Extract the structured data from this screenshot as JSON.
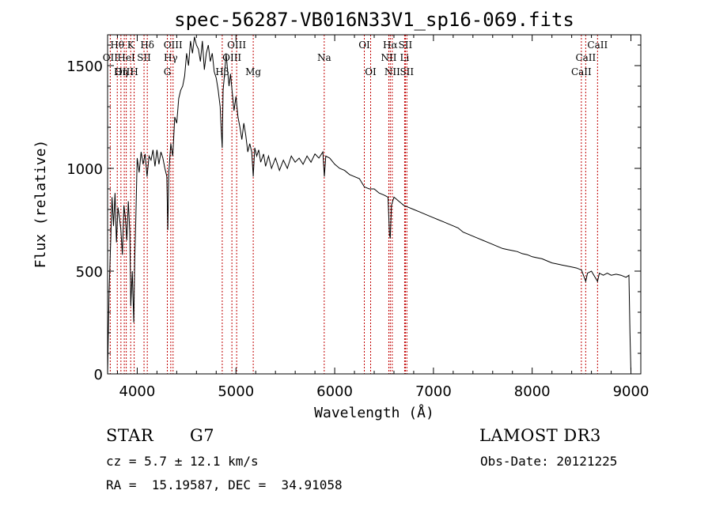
{
  "chart_data": {
    "type": "line",
    "title": "spec-56287-VB016N33V1_sp16-069.fits",
    "xlabel": "Wavelength (Å)",
    "ylabel": "Flux (relative)",
    "xlim": [
      3700,
      9100
    ],
    "ylim": [
      0,
      1650
    ],
    "xticks": [
      4000,
      5000,
      6000,
      7000,
      8000,
      9000
    ],
    "yticks": [
      0,
      500,
      1000,
      1500
    ],
    "spectrum": [
      [
        3700,
        0
      ],
      [
        3715,
        400
      ],
      [
        3730,
        620
      ],
      [
        3745,
        860
      ],
      [
        3760,
        720
      ],
      [
        3775,
        880
      ],
      [
        3790,
        640
      ],
      [
        3805,
        810
      ],
      [
        3820,
        760
      ],
      [
        3835,
        700
      ],
      [
        3850,
        580
      ],
      [
        3865,
        820
      ],
      [
        3880,
        760
      ],
      [
        3895,
        650
      ],
      [
        3910,
        840
      ],
      [
        3925,
        690
      ],
      [
        3935,
        330
      ],
      [
        3950,
        500
      ],
      [
        3965,
        250
      ],
      [
        3975,
        560
      ],
      [
        3985,
        740
      ],
      [
        4000,
        1050
      ],
      [
        4020,
        980
      ],
      [
        4040,
        1080
      ],
      [
        4060,
        1020
      ],
      [
        4080,
        1070
      ],
      [
        4100,
        960
      ],
      [
        4120,
        1060
      ],
      [
        4140,
        1040
      ],
      [
        4160,
        1090
      ],
      [
        4180,
        1010
      ],
      [
        4200,
        1090
      ],
      [
        4220,
        1020
      ],
      [
        4240,
        1080
      ],
      [
        4260,
        1050
      ],
      [
        4280,
        1000
      ],
      [
        4300,
        960
      ],
      [
        4310,
        700
      ],
      [
        4320,
        980
      ],
      [
        4340,
        1120
      ],
      [
        4360,
        1060
      ],
      [
        4380,
        1250
      ],
      [
        4400,
        1220
      ],
      [
        4420,
        1340
      ],
      [
        4440,
        1380
      ],
      [
        4460,
        1400
      ],
      [
        4480,
        1450
      ],
      [
        4500,
        1560
      ],
      [
        4520,
        1500
      ],
      [
        4540,
        1620
      ],
      [
        4560,
        1560
      ],
      [
        4580,
        1640
      ],
      [
        4600,
        1600
      ],
      [
        4620,
        1580
      ],
      [
        4640,
        1520
      ],
      [
        4660,
        1620
      ],
      [
        4680,
        1480
      ],
      [
        4700,
        1560
      ],
      [
        4720,
        1600
      ],
      [
        4740,
        1520
      ],
      [
        4760,
        1560
      ],
      [
        4780,
        1470
      ],
      [
        4800,
        1440
      ],
      [
        4820,
        1380
      ],
      [
        4840,
        1300
      ],
      [
        4850,
        1200
      ],
      [
        4861,
        1100
      ],
      [
        4870,
        1380
      ],
      [
        4885,
        1460
      ],
      [
        4900,
        1560
      ],
      [
        4915,
        1480
      ],
      [
        4930,
        1400
      ],
      [
        4945,
        1460
      ],
      [
        4960,
        1380
      ],
      [
        4980,
        1280
      ],
      [
        5000,
        1350
      ],
      [
        5020,
        1250
      ],
      [
        5040,
        1200
      ],
      [
        5060,
        1140
      ],
      [
        5080,
        1220
      ],
      [
        5100,
        1160
      ],
      [
        5120,
        1080
      ],
      [
        5140,
        1120
      ],
      [
        5160,
        1080
      ],
      [
        5175,
        960
      ],
      [
        5190,
        1100
      ],
      [
        5210,
        1060
      ],
      [
        5230,
        1090
      ],
      [
        5250,
        1030
      ],
      [
        5280,
        1070
      ],
      [
        5300,
        1010
      ],
      [
        5330,
        1060
      ],
      [
        5360,
        1000
      ],
      [
        5400,
        1050
      ],
      [
        5440,
        990
      ],
      [
        5480,
        1040
      ],
      [
        5520,
        1000
      ],
      [
        5560,
        1060
      ],
      [
        5600,
        1030
      ],
      [
        5640,
        1050
      ],
      [
        5680,
        1020
      ],
      [
        5720,
        1060
      ],
      [
        5760,
        1030
      ],
      [
        5800,
        1070
      ],
      [
        5840,
        1050
      ],
      [
        5880,
        1080
      ],
      [
        5895,
        960
      ],
      [
        5910,
        1060
      ],
      [
        5950,
        1050
      ],
      [
        6000,
        1020
      ],
      [
        6050,
        1000
      ],
      [
        6100,
        990
      ],
      [
        6150,
        970
      ],
      [
        6200,
        960
      ],
      [
        6250,
        950
      ],
      [
        6300,
        910
      ],
      [
        6350,
        900
      ],
      [
        6400,
        900
      ],
      [
        6450,
        880
      ],
      [
        6500,
        870
      ],
      [
        6540,
        860
      ],
      [
        6555,
        680
      ],
      [
        6563,
        660
      ],
      [
        6575,
        820
      ],
      [
        6600,
        860
      ],
      [
        6650,
        840
      ],
      [
        6700,
        820
      ],
      [
        6750,
        810
      ],
      [
        6800,
        800
      ],
      [
        6850,
        790
      ],
      [
        6900,
        780
      ],
      [
        6950,
        770
      ],
      [
        7000,
        760
      ],
      [
        7050,
        750
      ],
      [
        7100,
        740
      ],
      [
        7150,
        730
      ],
      [
        7200,
        720
      ],
      [
        7250,
        710
      ],
      [
        7300,
        690
      ],
      [
        7350,
        680
      ],
      [
        7400,
        670
      ],
      [
        7450,
        660
      ],
      [
        7500,
        650
      ],
      [
        7550,
        640
      ],
      [
        7600,
        630
      ],
      [
        7650,
        620
      ],
      [
        7700,
        610
      ],
      [
        7750,
        605
      ],
      [
        7800,
        600
      ],
      [
        7850,
        595
      ],
      [
        7900,
        585
      ],
      [
        7950,
        580
      ],
      [
        8000,
        570
      ],
      [
        8050,
        565
      ],
      [
        8100,
        560
      ],
      [
        8150,
        550
      ],
      [
        8200,
        540
      ],
      [
        8250,
        535
      ],
      [
        8300,
        530
      ],
      [
        8350,
        525
      ],
      [
        8400,
        520
      ],
      [
        8450,
        515
      ],
      [
        8500,
        505
      ],
      [
        8542,
        450
      ],
      [
        8560,
        490
      ],
      [
        8600,
        500
      ],
      [
        8662,
        450
      ],
      [
        8680,
        490
      ],
      [
        8720,
        480
      ],
      [
        8760,
        490
      ],
      [
        8800,
        480
      ],
      [
        8850,
        485
      ],
      [
        8900,
        480
      ],
      [
        8950,
        470
      ],
      [
        8980,
        480
      ],
      [
        8990,
        200
      ],
      [
        9000,
        10
      ]
    ],
    "lines": [
      {
        "name": "Hθ",
        "x": 3798,
        "row": 0
      },
      {
        "name": "OII",
        "x": 3727,
        "row": 1
      },
      {
        "name": "OIII",
        "x": 3869,
        "row": 2
      },
      {
        "name": "K",
        "x": 3934,
        "row": 0
      },
      {
        "name": "HeI",
        "x": 3889,
        "row": 1
      },
      {
        "name": "Hη",
        "x": 3835,
        "row": 2
      },
      {
        "name": "Hδ",
        "x": 4102,
        "row": 0
      },
      {
        "name": "SII",
        "x": 4069,
        "row": 1
      },
      {
        "name": "H",
        "x": 3969,
        "row": 2
      },
      {
        "name": "OIII",
        "x": 4363,
        "row": 0
      },
      {
        "name": "Hγ",
        "x": 4340,
        "row": 1
      },
      {
        "name": "G",
        "x": 4305,
        "row": 2
      },
      {
        "name": "OIII",
        "x": 5007,
        "row": 0
      },
      {
        "name": "OIII",
        "x": 4959,
        "row": 1
      },
      {
        "name": "Hβ",
        "x": 4861,
        "row": 2
      },
      {
        "name": "Mg",
        "x": 5175,
        "row": 2
      },
      {
        "name": "Na",
        "x": 5894,
        "row": 1
      },
      {
        "name": "OI",
        "x": 6300,
        "row": 0
      },
      {
        "name": "OI",
        "x": 6364,
        "row": 2
      },
      {
        "name": "Hα",
        "x": 6563,
        "row": 0
      },
      {
        "name": "NII",
        "x": 6548,
        "row": 1
      },
      {
        "name": "NII",
        "x": 6583,
        "row": 2
      },
      {
        "name": "SII",
        "x": 6716,
        "row": 0
      },
      {
        "name": "Li",
        "x": 6708,
        "row": 1
      },
      {
        "name": "SII",
        "x": 6731,
        "row": 2
      },
      {
        "name": "CaII",
        "x": 8662,
        "row": 0
      },
      {
        "name": "CaII",
        "x": 8542,
        "row": 1
      },
      {
        "name": "CaII",
        "x": 8498,
        "row": 2
      }
    ]
  },
  "info": {
    "object_class": "STAR",
    "subclass": "G7",
    "survey": "LAMOST DR3",
    "cz": "cz = 5.7 ± 12.1 km/s",
    "obs_date": "Obs-Date: 20121225",
    "coords": "RA =  15.19587, DEC =  34.91058"
  }
}
